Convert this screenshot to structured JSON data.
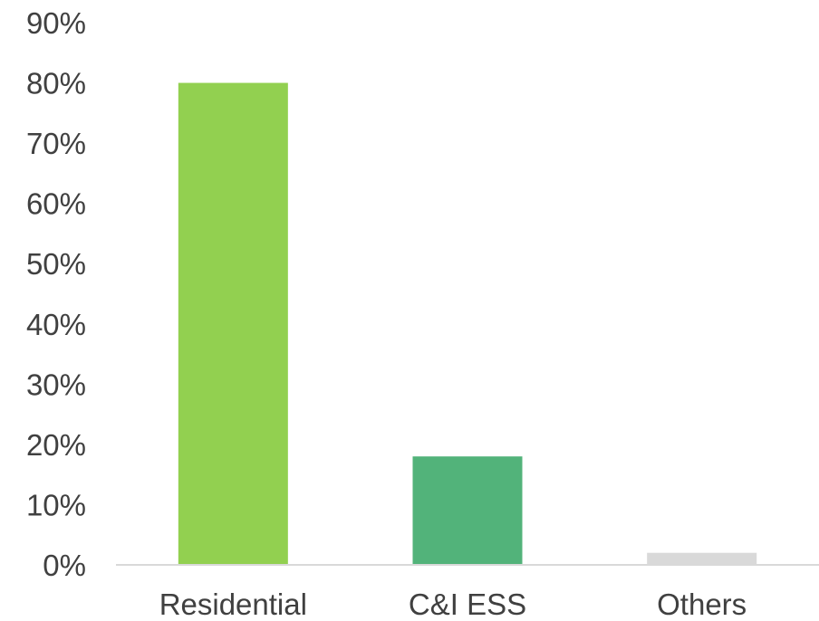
{
  "chart_data": {
    "type": "bar",
    "title": "",
    "xlabel": "",
    "ylabel": "",
    "categories": [
      "Residential",
      "C&I ESS",
      "Others"
    ],
    "values": [
      80,
      18,
      2
    ],
    "ylim": [
      0,
      90
    ],
    "yticks": [
      0,
      10,
      20,
      30,
      40,
      50,
      60,
      70,
      80,
      90
    ],
    "ytick_labels": [
      "0%",
      "10%",
      "20%",
      "30%",
      "40%",
      "50%",
      "60%",
      "70%",
      "80%",
      "90%"
    ],
    "grid": false,
    "legend": "none",
    "colors": [
      "#92d050",
      "#52b37a",
      "#d9d9d9"
    ],
    "axis_color": "#d9d9d9"
  }
}
